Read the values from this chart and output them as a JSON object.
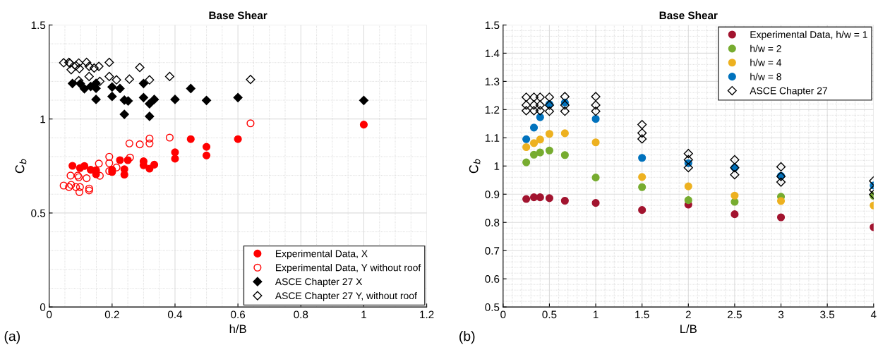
{
  "chart_data": [
    {
      "type": "scatter",
      "title": "Base Shear",
      "xlabel": "h/B",
      "ylabel": "C$_{b}$",
      "xlim": [
        0,
        1.2
      ],
      "ylim": [
        0,
        1.5
      ],
      "xticks": [
        0,
        0.2,
        0.4,
        0.6,
        0.8,
        1,
        1.2
      ],
      "yticks": [
        0,
        0.5,
        1,
        1.5
      ],
      "grid": true,
      "legend": "bottom right",
      "annotations": [
        "(a)"
      ],
      "series": [
        {
          "name": "Experimental Data, X",
          "color": "#ff0000",
          "marker": "circle",
          "x": [
            0.074,
            0.098,
            0.112,
            0.132,
            0.149,
            0.149,
            0.2,
            0.2,
            0.225,
            0.239,
            0.239,
            0.25,
            0.3,
            0.3,
            0.319,
            0.334,
            0.4,
            0.4,
            0.45,
            0.5,
            0.5,
            0.6,
            1.0
          ],
          "values": [
            0.751,
            0.739,
            0.75,
            0.73,
            0.727,
            0.706,
            0.73,
            0.718,
            0.781,
            0.733,
            0.704,
            0.781,
            0.775,
            0.754,
            0.736,
            0.757,
            0.823,
            0.789,
            0.893,
            0.852,
            0.806,
            0.893,
            0.97
          ]
        },
        {
          "name": "Experimental Data, Y without roof",
          "color": "#ff0000",
          "marker": "circle",
          "x": [
            0.046,
            0.063,
            0.07,
            0.085,
            0.096,
            0.098,
            0.068,
            0.091,
            0.094,
            0.119,
            0.127,
            0.127,
            0.158,
            0.161,
            0.191,
            0.191,
            0.191,
            0.214,
            0.257,
            0.255,
            0.288,
            0.319,
            0.319,
            0.383,
            0.64
          ],
          "values": [
            0.646,
            0.638,
            0.65,
            0.638,
            0.611,
            0.638,
            0.699,
            0.699,
            0.69,
            0.685,
            0.63,
            0.62,
            0.763,
            0.698,
            0.799,
            0.765,
            0.723,
            0.742,
            0.795,
            0.87,
            0.865,
            0.896,
            0.87,
            0.901,
            0.977
          ]
        },
        {
          "name": "ASCE Chapter 27 X",
          "color": "#000000",
          "marker": "diamond",
          "x": [
            0.074,
            0.099,
            0.112,
            0.132,
            0.149,
            0.149,
            0.149,
            0.2,
            0.2,
            0.225,
            0.239,
            0.239,
            0.251,
            0.3,
            0.3,
            0.319,
            0.319,
            0.334,
            0.4,
            0.45,
            0.5,
            0.6,
            1.0
          ],
          "values": [
            1.189,
            1.188,
            1.161,
            1.173,
            1.19,
            1.163,
            1.104,
            1.17,
            1.12,
            1.162,
            1.101,
            1.025,
            1.096,
            1.189,
            1.114,
            1.081,
            1.014,
            1.104,
            1.104,
            1.162,
            1.099,
            1.114,
            1.099
          ]
        },
        {
          "name": "ASCE Chapter 27 Y, without roof",
          "color": "#000000",
          "marker": "diamond",
          "x": [
            0.046,
            0.063,
            0.066,
            0.07,
            0.085,
            0.094,
            0.096,
            0.119,
            0.127,
            0.127,
            0.143,
            0.158,
            0.094,
            0.161,
            0.191,
            0.191,
            0.214,
            0.255,
            0.288,
            0.319,
            0.383,
            0.64
          ],
          "values": [
            1.299,
            1.301,
            1.296,
            1.262,
            1.283,
            1.298,
            1.268,
            1.301,
            1.28,
            1.226,
            1.271,
            1.28,
            1.204,
            1.2,
            1.301,
            1.226,
            1.208,
            1.212,
            1.274,
            1.208,
            1.226,
            1.21
          ]
        }
      ]
    },
    {
      "type": "scatter",
      "title": "Base Shear",
      "xlabel": "L/B",
      "ylabel": "C$_{b}$",
      "xlim": [
        0,
        4
      ],
      "ylim": [
        0.5,
        1.5
      ],
      "xticks": [
        0,
        0.5,
        1,
        1.5,
        2,
        2.5,
        3,
        3.5,
        4
      ],
      "yticks": [
        0.5,
        0.6,
        0.7,
        0.8,
        0.9,
        1,
        1.1,
        1.2,
        1.3,
        1.4,
        1.5
      ],
      "grid": true,
      "legend": "top right",
      "annotations": [
        "(b)"
      ],
      "series": [
        {
          "name": "Experimental Data, h/w = 1",
          "color": "#a2142f",
          "marker": "circle",
          "x": [
            0.25,
            0.333,
            0.4,
            0.5,
            0.667,
            1,
            1.5,
            2,
            2.5,
            3,
            4
          ],
          "values": [
            0.883,
            0.889,
            0.889,
            0.886,
            0.877,
            0.869,
            0.844,
            0.863,
            0.829,
            0.818,
            0.783
          ]
        },
        {
          "name": "h/w = 2",
          "color": "#77ac30",
          "marker": "circle",
          "x": [
            0.25,
            0.333,
            0.4,
            0.5,
            0.667,
            1,
            1.5,
            2,
            2.5,
            3,
            4
          ],
          "values": [
            1.013,
            1.04,
            1.048,
            1.055,
            1.039,
            0.959,
            0.925,
            0.879,
            0.873,
            0.891,
            0.894
          ]
        },
        {
          "name": "h/w = 4",
          "color": "#edb120",
          "marker": "circle",
          "x": [
            0.25,
            0.333,
            0.4,
            0.5,
            0.667,
            1,
            1.5,
            2,
            2.5,
            3,
            4
          ],
          "values": [
            1.067,
            1.081,
            1.094,
            1.114,
            1.116,
            1.084,
            0.961,
            0.928,
            0.895,
            0.876,
            0.86
          ]
        },
        {
          "name": "h/w = 8",
          "color": "#0072bd",
          "marker": "circle",
          "x": [
            0.25,
            0.333,
            0.4,
            0.5,
            0.667,
            1,
            1.5,
            2,
            2.5,
            3,
            4
          ],
          "values": [
            1.095,
            1.136,
            1.173,
            1.219,
            1.225,
            1.167,
            1.029,
            1.01,
            0.994,
            0.965,
            0.931
          ]
        },
        {
          "name": "ASCE Chapter 27",
          "color": "#000000",
          "marker": "diamond",
          "x": [
            0.25,
            0.25,
            0.25,
            0.333,
            0.333,
            0.333,
            0.4,
            0.4,
            0.4,
            0.5,
            0.5,
            0.5,
            0.667,
            0.667,
            0.667,
            1,
            1,
            1,
            1.5,
            1.5,
            1.5,
            2,
            2,
            2,
            2.5,
            2.5,
            2.5,
            3,
            3,
            3,
            4,
            4,
            4
          ],
          "values": [
            1.244,
            1.216,
            1.196,
            1.244,
            1.216,
            1.196,
            1.244,
            1.216,
            1.196,
            1.244,
            1.216,
            1.194,
            1.246,
            1.216,
            1.194,
            1.246,
            1.216,
            1.194,
            1.147,
            1.117,
            1.096,
            1.044,
            1.022,
            0.994,
            1.022,
            0.994,
            0.969,
            0.997,
            0.963,
            0.943,
            0.947,
            0.915,
            0.899
          ]
        }
      ]
    }
  ]
}
